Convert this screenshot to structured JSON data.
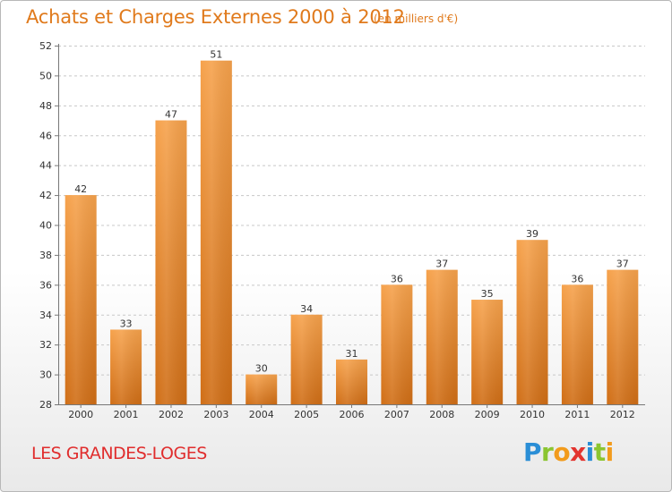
{
  "header": {
    "title": "Achats et Charges Externes 2000 à 2012",
    "unit": "(en milliers d'€)"
  },
  "footer": {
    "commune": "LES GRANDES-LOGES",
    "logo_text": "Proxiti"
  },
  "colors": {
    "bar_top": "#f6a24c",
    "bar_bottom": "#d06e16",
    "title": "#e07a1c",
    "commune": "#e02d2d",
    "grid": "#c8c8c8"
  },
  "chart_data": {
    "type": "bar",
    "categories": [
      "2000",
      "2001",
      "2002",
      "2003",
      "2004",
      "2005",
      "2006",
      "2007",
      "2008",
      "2009",
      "2010",
      "2011",
      "2012"
    ],
    "values": [
      42,
      33,
      47,
      51,
      30,
      34,
      31,
      36,
      37,
      35,
      39,
      36,
      37
    ],
    "data_labels": [
      "42",
      "33",
      "47",
      "51",
      "30",
      "34",
      "31",
      "36",
      "37",
      "35",
      "39",
      "36",
      "37"
    ],
    "ylim": [
      28,
      52
    ],
    "yticks": [
      28,
      30,
      32,
      34,
      36,
      38,
      40,
      42,
      44,
      46,
      48,
      50,
      52
    ],
    "grid": "horizontal dashed",
    "legend": "none"
  }
}
